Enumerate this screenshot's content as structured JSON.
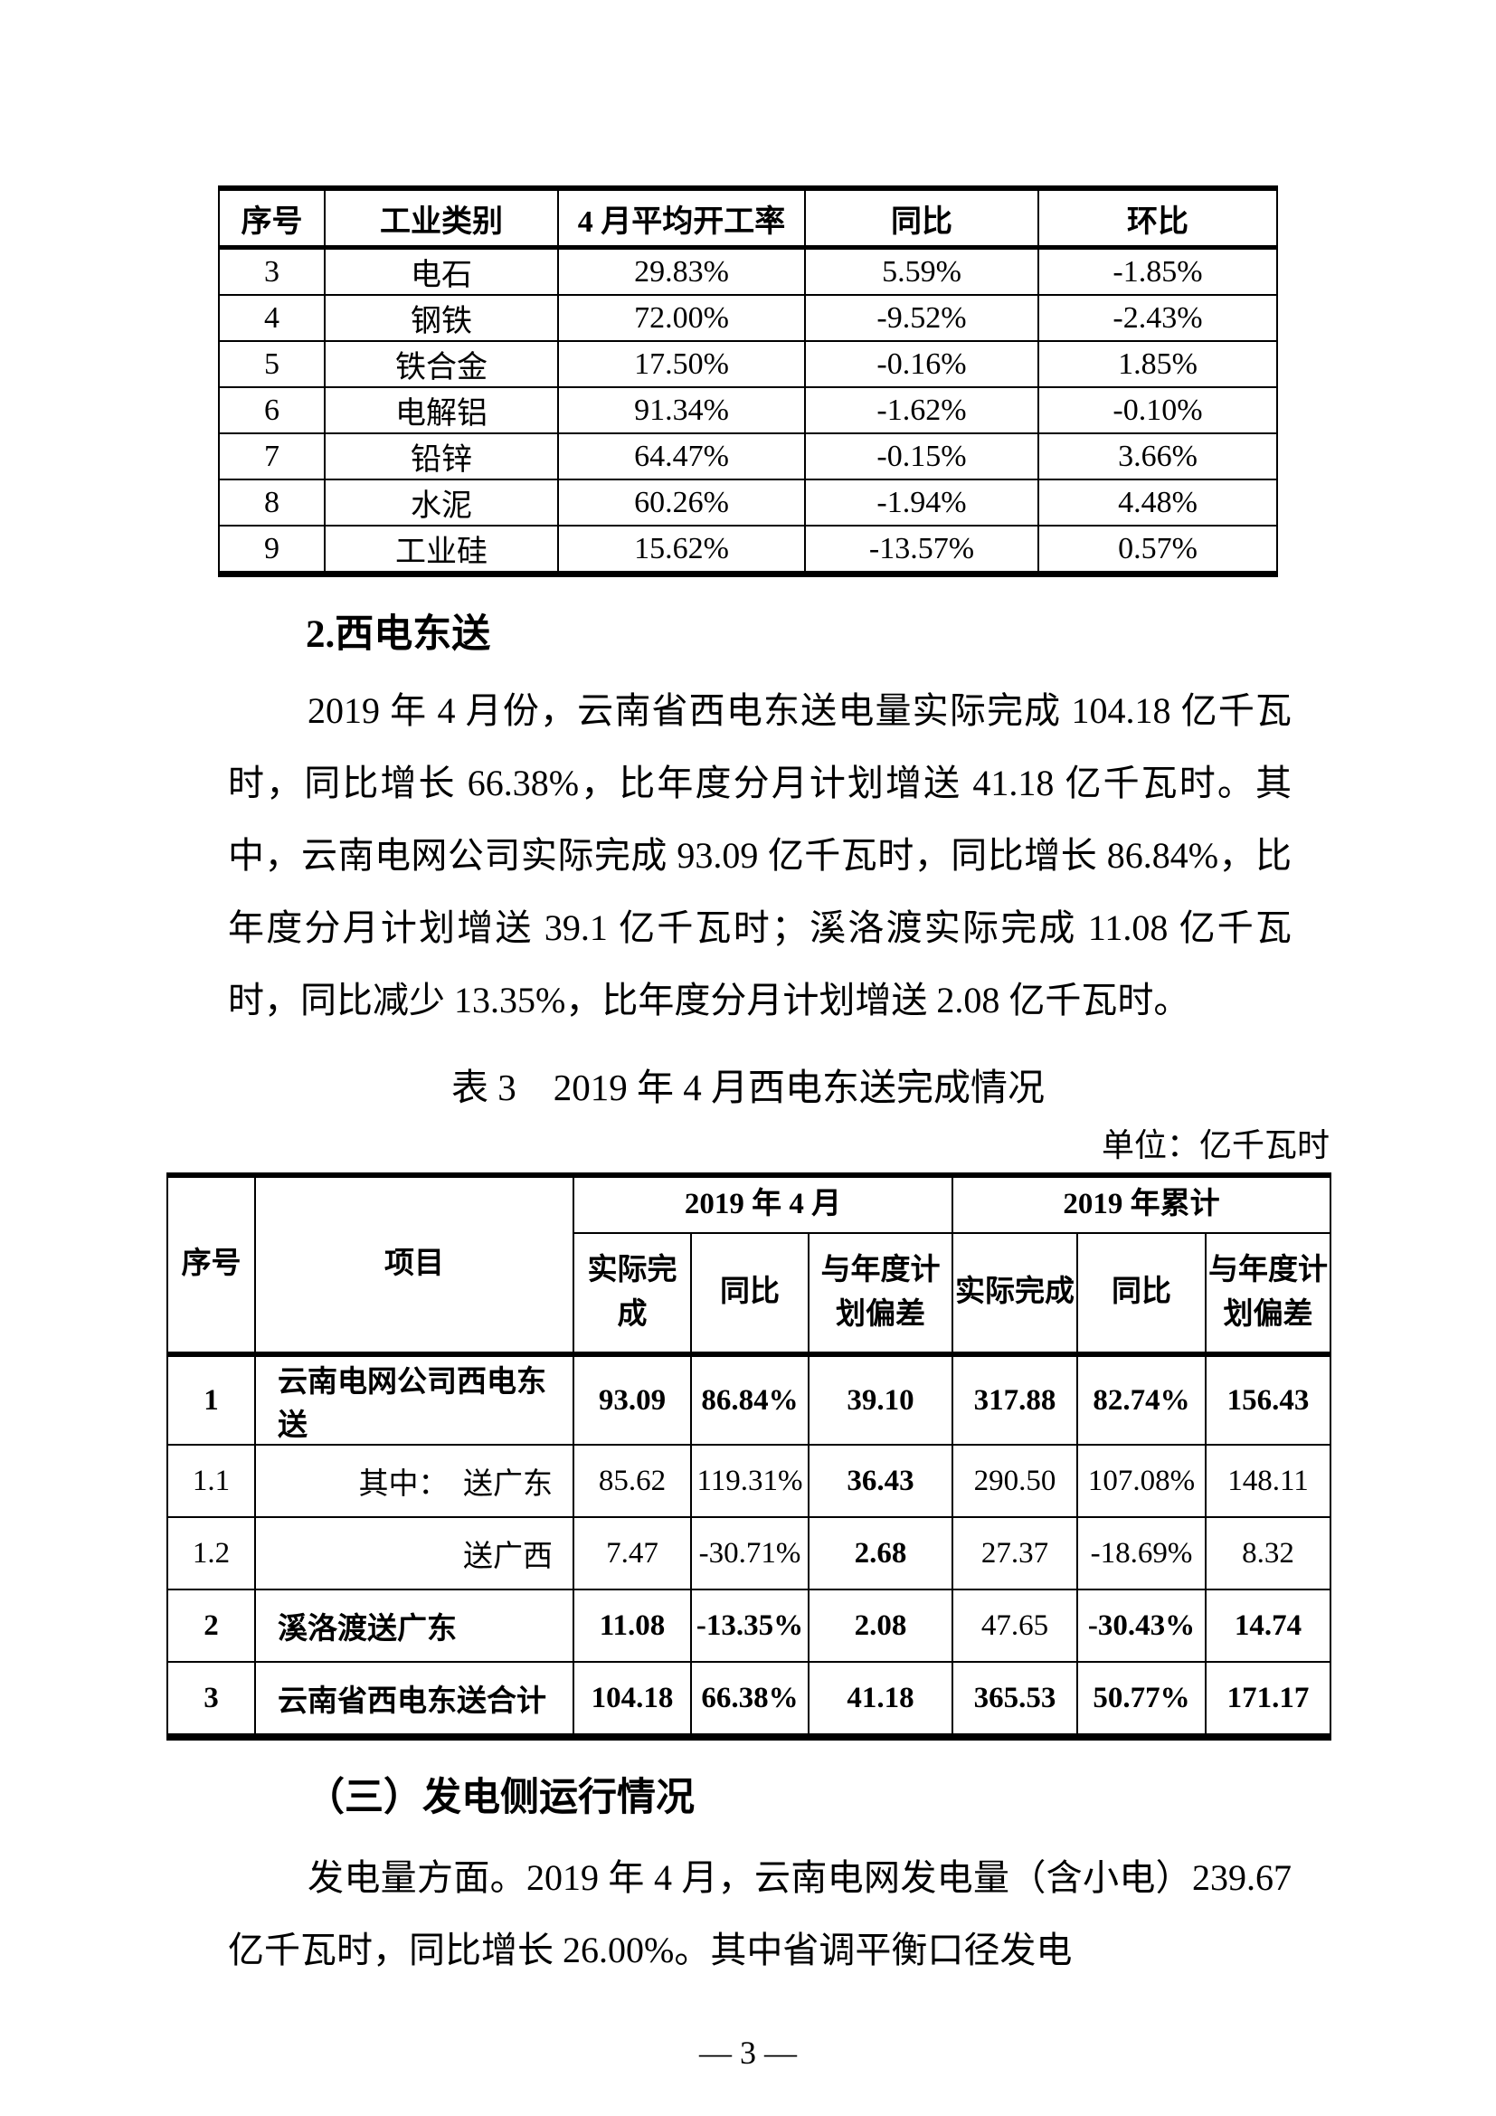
{
  "page": {
    "number": "— 3 —"
  },
  "table1": {
    "headers": [
      "序号",
      "工业类别",
      "4 月平均开工率",
      "同比",
      "环比"
    ],
    "rows": [
      [
        "3",
        "电石",
        "29.83%",
        "5.59%",
        "-1.85%"
      ],
      [
        "4",
        "钢铁",
        "72.00%",
        "-9.52%",
        "-2.43%"
      ],
      [
        "5",
        "铁合金",
        "17.50%",
        "-0.16%",
        "1.85%"
      ],
      [
        "6",
        "电解铝",
        "91.34%",
        "-1.62%",
        "-0.10%"
      ],
      [
        "7",
        "铅锌",
        "64.47%",
        "-0.15%",
        "3.66%"
      ],
      [
        "8",
        "水泥",
        "60.26%",
        "-1.94%",
        "4.48%"
      ],
      [
        "9",
        "工业硅",
        "15.62%",
        "-13.57%",
        "0.57%"
      ]
    ]
  },
  "section2": {
    "heading": "2.西电东送",
    "paragraph": "2019 年 4 月份，云南省西电东送电量实际完成 104.18 亿千瓦时，同比增长 66.38%，比年度分月计划增送 41.18 亿千瓦时。其中，云南电网公司实际完成 93.09 亿千瓦时，同比增长 86.84%，比年度分月计划增送 39.1 亿千瓦时；溪洛渡实际完成 11.08 亿千瓦时，同比减少 13.35%，比年度分月计划增送 2.08 亿千瓦时。"
  },
  "table3": {
    "title": "表 3　2019 年 4 月西电东送完成情况",
    "unit": "单位：亿千瓦时",
    "header": {
      "no": "序号",
      "item": "项目",
      "group_april": "2019 年 4 月",
      "group_cum": "2019 年累计",
      "actual": "实际完成",
      "yoy": "同比",
      "plan_dev": "与年度计划偏差"
    },
    "rows": [
      {
        "no": "1",
        "no_bold": true,
        "item": "云南电网公司西电东送",
        "item_bold": true,
        "item_align": "l",
        "values": [
          "93.09",
          "86.84%",
          "39.10",
          "317.88",
          "82.74%",
          "156.43"
        ],
        "bold": [
          true,
          true,
          true,
          true,
          true,
          true
        ]
      },
      {
        "no": "1.1",
        "no_bold": false,
        "item": "其中：　送广东",
        "item_bold": false,
        "item_align": "r",
        "values": [
          "85.62",
          "119.31%",
          "36.43",
          "290.50",
          "107.08%",
          "148.11"
        ],
        "bold": [
          false,
          false,
          true,
          false,
          false,
          false
        ]
      },
      {
        "no": "1.2",
        "no_bold": false,
        "item": "送广西",
        "item_bold": false,
        "item_align": "r",
        "values": [
          "7.47",
          "-30.71%",
          "2.68",
          "27.37",
          "-18.69%",
          "8.32"
        ],
        "bold": [
          false,
          false,
          true,
          false,
          false,
          false
        ]
      },
      {
        "no": "2",
        "no_bold": true,
        "item": "溪洛渡送广东",
        "item_bold": true,
        "item_align": "l",
        "values": [
          "11.08",
          "-13.35%",
          "2.08",
          "47.65",
          "-30.43%",
          "14.74"
        ],
        "bold": [
          true,
          true,
          true,
          false,
          true,
          true
        ]
      },
      {
        "no": "3",
        "no_bold": true,
        "item": "云南省西电东送合计",
        "item_bold": true,
        "item_align": "l",
        "values": [
          "104.18",
          "66.38%",
          "41.18",
          "365.53",
          "50.77%",
          "171.17"
        ],
        "bold": [
          true,
          true,
          true,
          true,
          true,
          true
        ]
      }
    ]
  },
  "section3": {
    "heading": "（三）发电侧运行情况",
    "paragraph": "发电量方面。2019 年 4 月，云南电网发电量（含小电）239.67 亿千瓦时，同比增长 26.00%。其中省调平衡口径发电"
  }
}
